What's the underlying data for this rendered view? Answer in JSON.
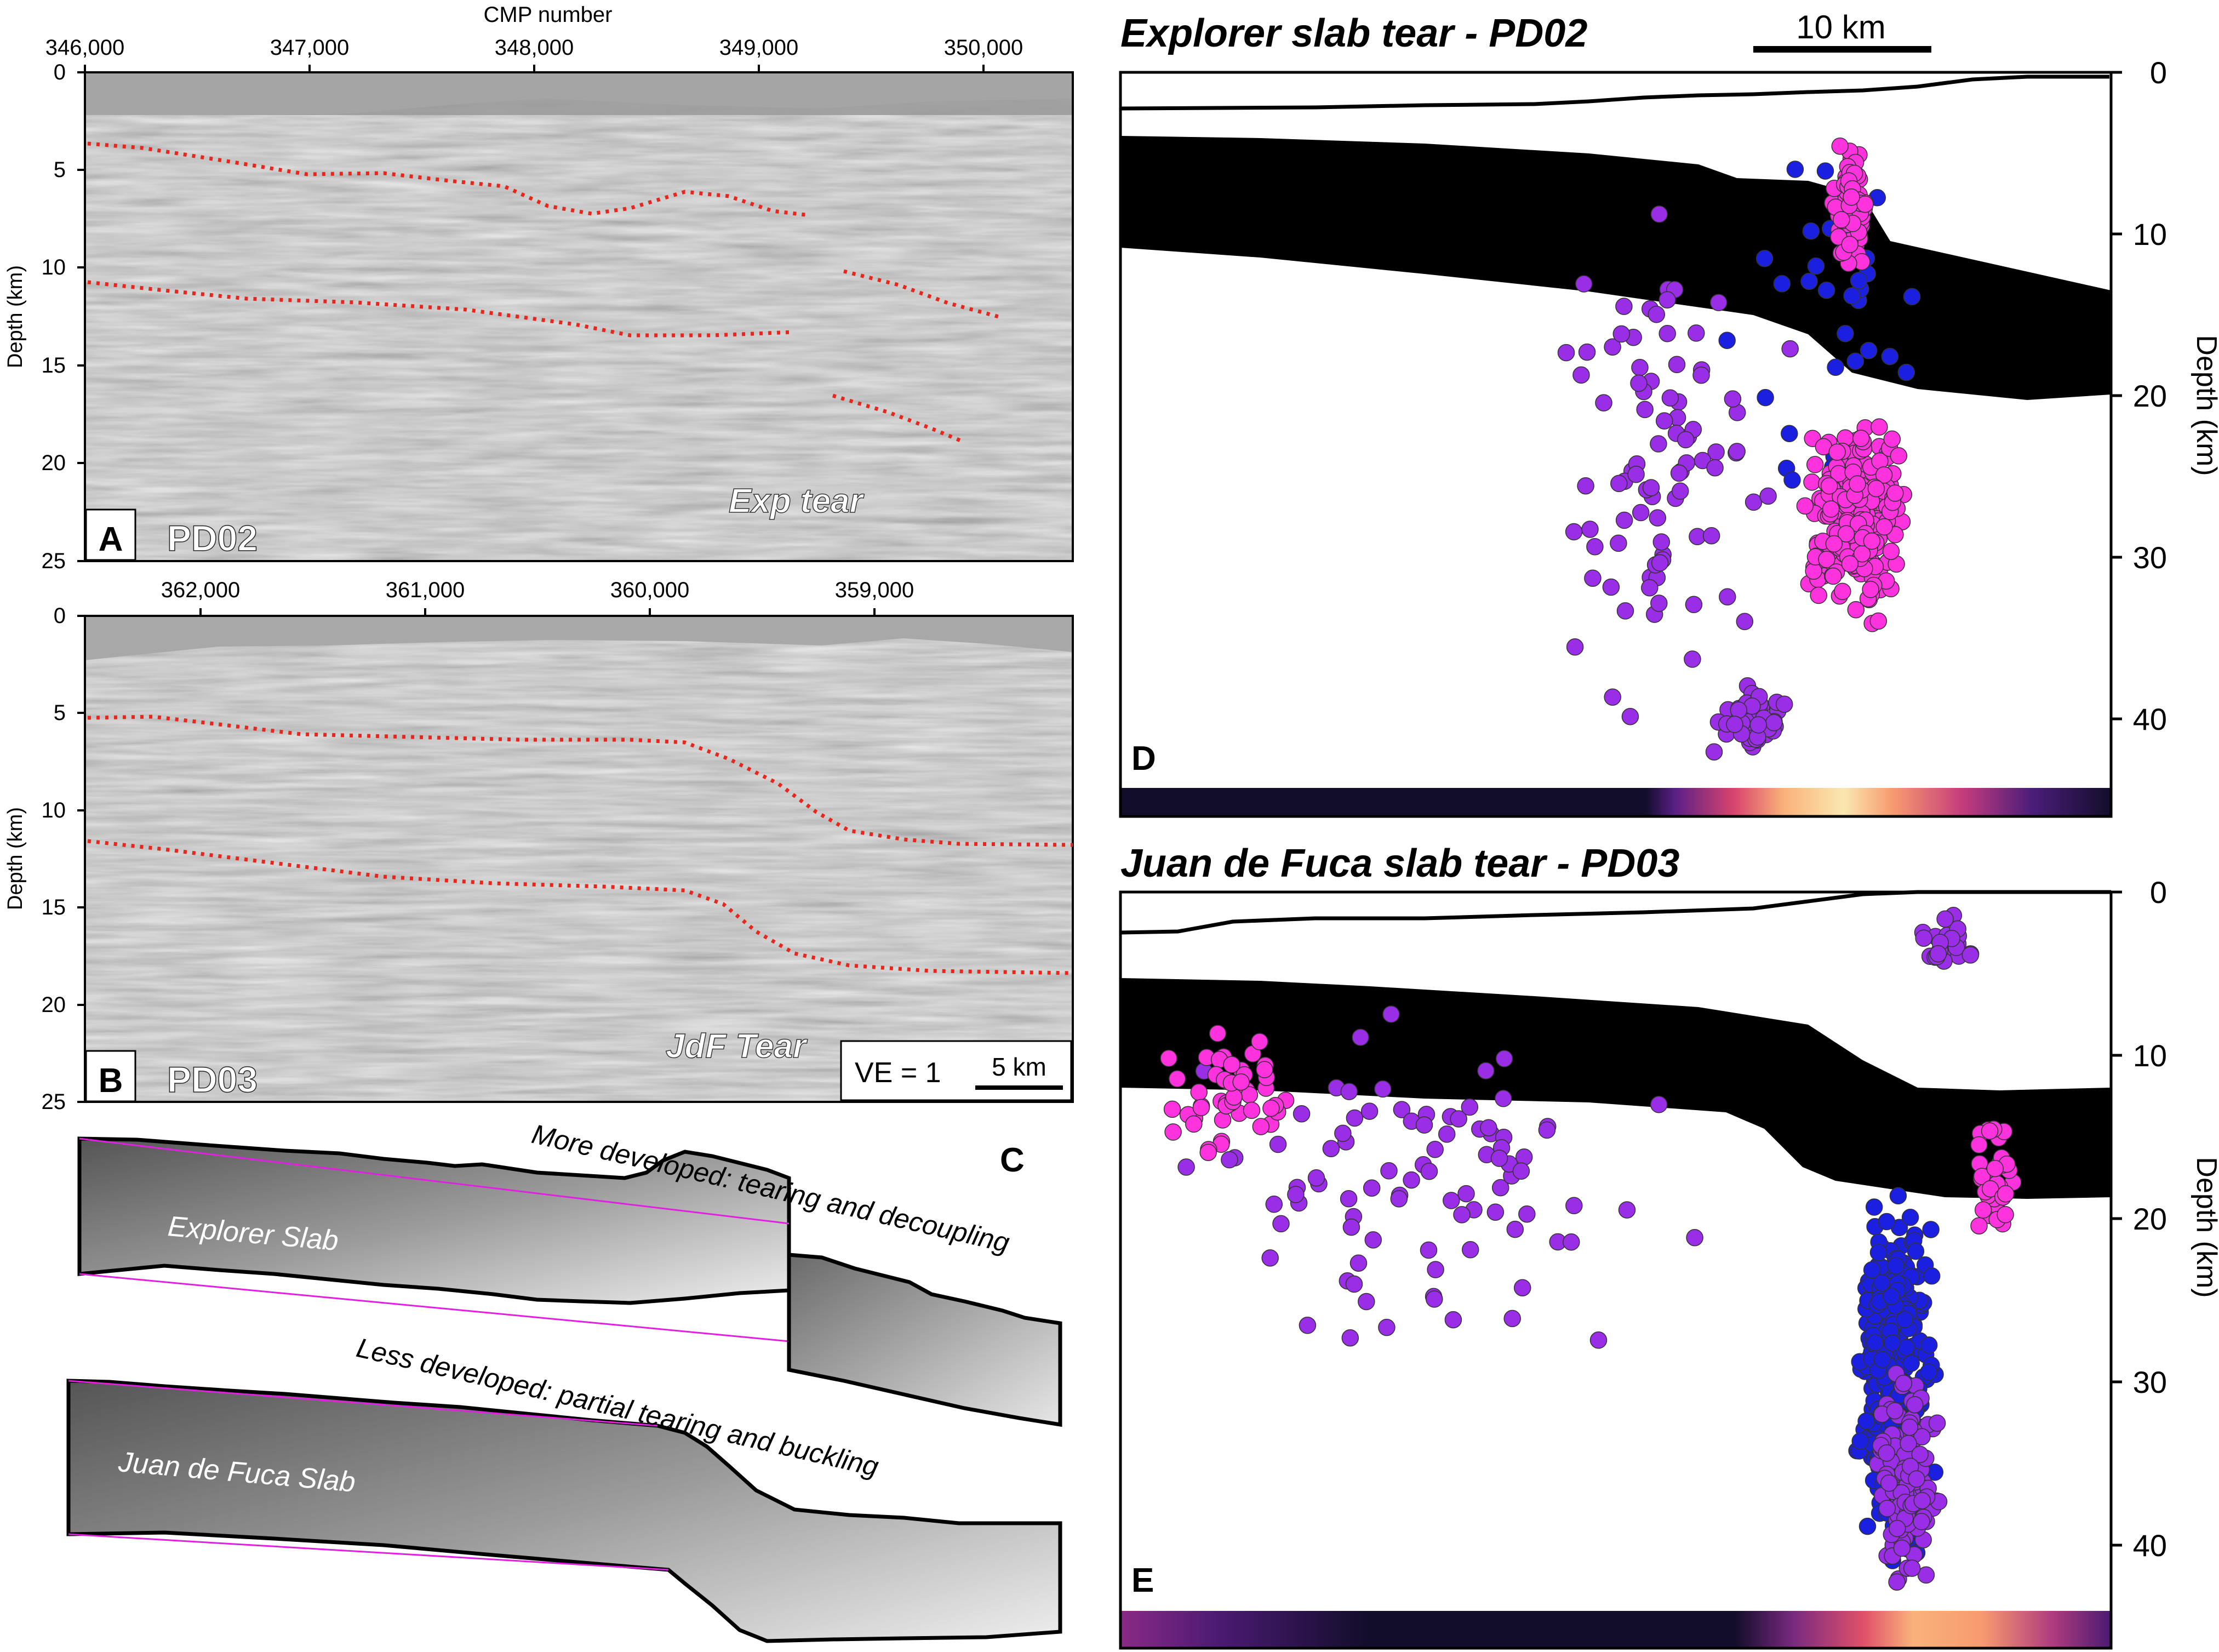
{
  "panelA": {
    "letter": "A",
    "name": "PD02",
    "top_label": "CMP number",
    "ylabel": "Depth (km)",
    "xticks": [
      "346,000",
      "347,000",
      "348,000",
      "349,000",
      "350,000"
    ],
    "yticks": [
      "0",
      "5",
      "10",
      "15",
      "20",
      "25"
    ],
    "annotation": "Exp tear"
  },
  "panelB": {
    "letter": "B",
    "name": "PD03",
    "ylabel": "Depth (km)",
    "xticks": [
      "362,000",
      "361,000",
      "360,000",
      "359,000"
    ],
    "yticks": [
      "0",
      "5",
      "10",
      "15",
      "20",
      "25"
    ],
    "annotation": "JdF Tear",
    "ve_label": "VE = 1",
    "scale_label": "5 km"
  },
  "panelC": {
    "letter": "C",
    "explorer_label": "Explorer Slab",
    "jdf_label": "Juan de Fuca Slab",
    "more_label": "More developed: tearing and decoupling",
    "less_label": "Less developed: partial tearing and buckling"
  },
  "panelD": {
    "letter": "D",
    "title": "Explorer slab tear - PD02",
    "scale_label": "10 km",
    "ylabel": "Depth (km)",
    "yticks": [
      "0",
      "10",
      "20",
      "30",
      "40"
    ]
  },
  "panelE": {
    "letter": "E",
    "title": "Juan de Fuca slab tear - PD03",
    "ylabel": "Depth (km)",
    "yticks": [
      "0",
      "10",
      "20",
      "30",
      "40"
    ]
  },
  "colors": {
    "pick": "#e8261c",
    "slab": "#000000",
    "magenta": "#ff33dd",
    "purple": "#9a2ee6",
    "blue": "#1a1fe0",
    "outline": "#e020e0"
  }
}
